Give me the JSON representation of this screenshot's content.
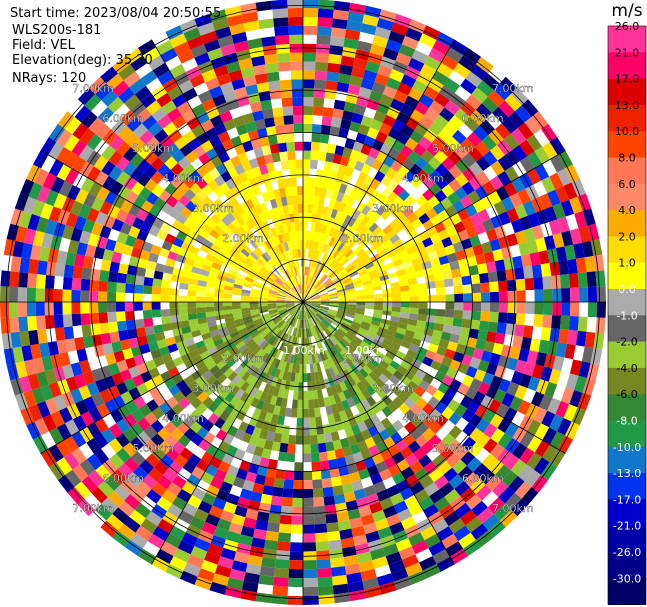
{
  "header": {
    "start_time": "Start time: 2023/08/04 20:50:55",
    "instrument": "WLS200s-181",
    "field": "Field: VEL",
    "elevation": "Elevation(deg): 35.30",
    "nrays": "NRays: 120"
  },
  "chart_data": {
    "type": "heatmap",
    "projection": "polar-ppi",
    "field": "VEL",
    "nrays": 120,
    "range_rings_labels": [
      "1.00km",
      "2.00km",
      "3.00km",
      "4.00km",
      "5.00km",
      "6.00km",
      "7.00km"
    ],
    "range_rings_km": [
      1,
      2,
      3,
      4,
      5,
      6,
      7
    ],
    "colorbar": {
      "unit": "m/s",
      "ticks": [
        "26.0",
        "21.0",
        "17.0",
        "13.0",
        "10.0",
        "8.0",
        "6.0",
        "4.0",
        "2.0",
        "1.0",
        "0.0",
        "-1.0",
        "-2.0",
        "-4.0",
        "-6.0",
        "-8.0",
        "-10.0",
        "-13.0",
        "-17.0",
        "-21.0",
        "-26.0",
        "-30.0"
      ],
      "colors": [
        "#ff3399",
        "#ff0066",
        "#dd0000",
        "#ee2200",
        "#ff4400",
        "#ff7755",
        "#ff8866",
        "#ffaa00",
        "#ffdd00",
        "#ffff00",
        "#aaaaaa",
        "#666666",
        "#99cc33",
        "#778822",
        "#338833",
        "#229944",
        "#1177cc",
        "#0033ee",
        "#0000cc",
        "#0000aa",
        "#000088",
        "#000066"
      ]
    }
  }
}
